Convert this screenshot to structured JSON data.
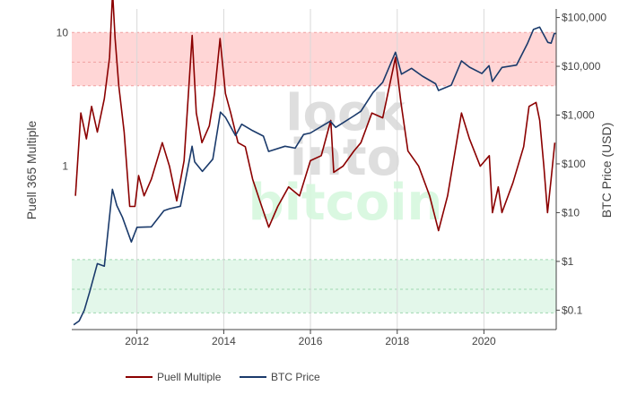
{
  "chart_data": {
    "type": "line",
    "title": "",
    "watermark": [
      "look",
      "into",
      "bitcoin"
    ],
    "x_axis": {
      "ticks": [
        "2012",
        "2014",
        "2016",
        "2018",
        "2020"
      ],
      "range": [
        "2010-07-01",
        "2021-09-01"
      ]
    },
    "y_left": {
      "label": "Puell 365 Multiple",
      "scale": "log",
      "range": [
        0.06,
        15
      ],
      "ticks": [
        {
          "value": 1,
          "label": "1"
        },
        {
          "value": 10,
          "label": "10"
        }
      ]
    },
    "y_right": {
      "label": "BTC Price (USD)",
      "scale": "log",
      "range": [
        0.04,
        150000
      ],
      "ticks": [
        {
          "value": 100000,
          "label": "$100,000"
        },
        {
          "value": 10000,
          "label": "$10,000"
        },
        {
          "value": 1000,
          "label": "$1,000"
        },
        {
          "value": 100,
          "label": "$100"
        },
        {
          "value": 10,
          "label": "$10"
        },
        {
          "value": 1,
          "label": "$1"
        },
        {
          "value": 0.1,
          "label": "$0.1"
        }
      ]
    },
    "bands": [
      {
        "name": "overvalued",
        "from": 4,
        "to": 10,
        "color": "#ffd6d6",
        "line": "#f0a0a0",
        "mid_line": 6
      },
      {
        "name": "undervalued",
        "from": 0.08,
        "to": 0.2,
        "color": "#e3f7ea",
        "line": "#9fd7b0",
        "mid_line": 0.12
      }
    ],
    "series": [
      {
        "name": "Puell Multiple",
        "axis": "left",
        "color": "#8b0000",
        "points": [
          [
            "2010-08-01",
            0.6
          ],
          [
            "2010-09-15",
            2.5
          ],
          [
            "2010-11-01",
            1.6
          ],
          [
            "2010-12-15",
            2.8
          ],
          [
            "2011-02-01",
            1.8
          ],
          [
            "2011-04-01",
            3.2
          ],
          [
            "2011-05-15",
            6.5
          ],
          [
            "2011-06-10",
            20
          ],
          [
            "2011-07-01",
            9
          ],
          [
            "2011-08-01",
            4
          ],
          [
            "2011-09-15",
            1.8
          ],
          [
            "2011-11-01",
            0.5
          ],
          [
            "2011-12-15",
            0.5
          ],
          [
            "2012-01-15",
            0.85
          ],
          [
            "2012-03-01",
            0.6
          ],
          [
            "2012-05-01",
            0.8
          ],
          [
            "2012-08-01",
            1.5
          ],
          [
            "2012-10-01",
            1.0
          ],
          [
            "2012-12-01",
            0.55
          ],
          [
            "2013-02-01",
            1.1
          ],
          [
            "2013-04-10",
            9.5
          ],
          [
            "2013-05-15",
            2.5
          ],
          [
            "2013-07-01",
            1.5
          ],
          [
            "2013-09-01",
            2.0
          ],
          [
            "2013-10-15",
            3.5
          ],
          [
            "2013-12-01",
            9
          ],
          [
            "2014-01-15",
            3.5
          ],
          [
            "2014-03-01",
            2.5
          ],
          [
            "2014-05-01",
            1.5
          ],
          [
            "2014-07-01",
            1.4
          ],
          [
            "2014-09-01",
            0.8
          ],
          [
            "2014-11-01",
            0.55
          ],
          [
            "2015-01-15",
            0.35
          ],
          [
            "2015-04-01",
            0.5
          ],
          [
            "2015-07-01",
            0.7
          ],
          [
            "2015-10-01",
            0.6
          ],
          [
            "2016-01-01",
            1.1
          ],
          [
            "2016-04-01",
            1.2
          ],
          [
            "2016-06-20",
            2.2
          ],
          [
            "2016-07-15",
            0.9
          ],
          [
            "2016-10-01",
            1.0
          ],
          [
            "2017-01-01",
            1.3
          ],
          [
            "2017-03-01",
            1.5
          ],
          [
            "2017-06-01",
            2.5
          ],
          [
            "2017-09-01",
            2.3
          ],
          [
            "2017-12-17",
            6.5
          ],
          [
            "2018-02-01",
            3.0
          ],
          [
            "2018-04-01",
            1.3
          ],
          [
            "2018-07-01",
            1.0
          ],
          [
            "2018-10-01",
            0.6
          ],
          [
            "2018-12-15",
            0.33
          ],
          [
            "2019-03-01",
            0.6
          ],
          [
            "2019-06-26",
            2.5
          ],
          [
            "2019-09-01",
            1.6
          ],
          [
            "2019-12-01",
            1.0
          ],
          [
            "2020-02-15",
            1.2
          ],
          [
            "2020-03-13",
            0.45
          ],
          [
            "2020-05-01",
            0.7
          ],
          [
            "2020-06-01",
            0.45
          ],
          [
            "2020-09-01",
            0.75
          ],
          [
            "2020-12-01",
            1.4
          ],
          [
            "2021-01-15",
            2.8
          ],
          [
            "2021-03-15",
            3.0
          ],
          [
            "2021-04-15",
            2.2
          ],
          [
            "2021-05-20",
            1.0
          ],
          [
            "2021-06-20",
            0.45
          ],
          [
            "2021-07-20",
            0.8
          ],
          [
            "2021-08-20",
            1.5
          ]
        ]
      },
      {
        "name": "BTC Price",
        "axis": "right",
        "color": "#1a3a6b",
        "points": [
          [
            "2010-07-17",
            0.05
          ],
          [
            "2010-09-01",
            0.06
          ],
          [
            "2010-10-15",
            0.1
          ],
          [
            "2010-12-01",
            0.25
          ],
          [
            "2011-02-01",
            0.9
          ],
          [
            "2011-04-01",
            0.8
          ],
          [
            "2011-06-08",
            30
          ],
          [
            "2011-07-15",
            14
          ],
          [
            "2011-09-01",
            8
          ],
          [
            "2011-11-15",
            2.5
          ],
          [
            "2012-01-01",
            5
          ],
          [
            "2012-05-01",
            5.1
          ],
          [
            "2012-08-15",
            11
          ],
          [
            "2012-10-01",
            12
          ],
          [
            "2013-01-01",
            13.5
          ],
          [
            "2013-04-09",
            230
          ],
          [
            "2013-05-01",
            110
          ],
          [
            "2013-07-05",
            70
          ],
          [
            "2013-10-01",
            125
          ],
          [
            "2013-12-04",
            1150
          ],
          [
            "2014-01-15",
            900
          ],
          [
            "2014-04-10",
            380
          ],
          [
            "2014-06-01",
            650
          ],
          [
            "2014-09-01",
            480
          ],
          [
            "2014-12-01",
            370
          ],
          [
            "2015-01-14",
            180
          ],
          [
            "2015-06-01",
            230
          ],
          [
            "2015-08-25",
            210
          ],
          [
            "2015-11-04",
            400
          ],
          [
            "2016-01-01",
            430
          ],
          [
            "2016-06-16",
            750
          ],
          [
            "2016-08-01",
            560
          ],
          [
            "2016-12-31",
            960
          ],
          [
            "2017-03-01",
            1200
          ],
          [
            "2017-06-11",
            2900
          ],
          [
            "2017-09-01",
            4700
          ],
          [
            "2017-12-17",
            19500
          ],
          [
            "2018-02-06",
            6900
          ],
          [
            "2018-05-01",
            9100
          ],
          [
            "2018-08-01",
            6300
          ],
          [
            "2018-11-20",
            4400
          ],
          [
            "2018-12-15",
            3200
          ],
          [
            "2019-04-01",
            4100
          ],
          [
            "2019-06-26",
            12900
          ],
          [
            "2019-09-01",
            9600
          ],
          [
            "2019-12-15",
            7100
          ],
          [
            "2020-02-13",
            10300
          ],
          [
            "2020-03-12",
            4900
          ],
          [
            "2020-06-01",
            9500
          ],
          [
            "2020-10-01",
            10600
          ],
          [
            "2021-01-01",
            29000
          ],
          [
            "2021-02-21",
            57000
          ],
          [
            "2021-04-14",
            63500
          ],
          [
            "2021-06-22",
            31000
          ],
          [
            "2021-07-20",
            29800
          ],
          [
            "2021-08-15",
            47000
          ],
          [
            "2021-08-31",
            47100
          ]
        ]
      }
    ]
  },
  "legend": {
    "items": [
      {
        "label": "Puell Multiple",
        "color": "#8b0000"
      },
      {
        "label": "BTC Price",
        "color": "#1a3a6b"
      }
    ]
  }
}
